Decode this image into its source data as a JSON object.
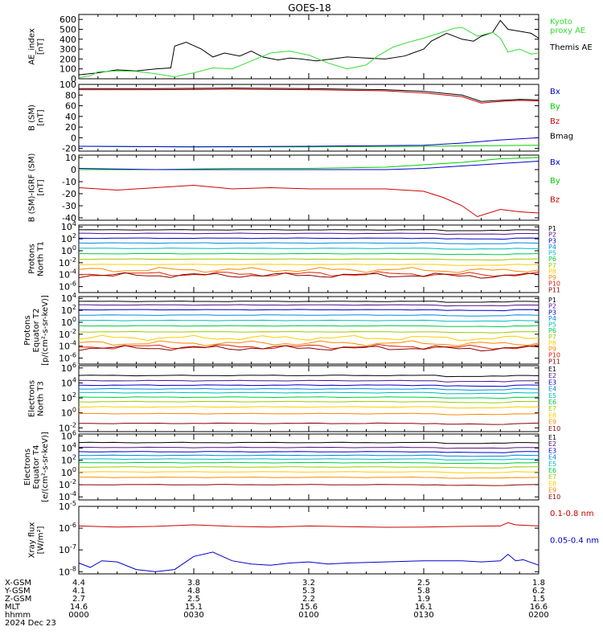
{
  "title": "GOES-18",
  "colors": {
    "axis": "#000000",
    "black": "#000000",
    "blue": "#0000cc",
    "green": "#00cc00",
    "red": "#cc0000",
    "bright_green": "#33dd33"
  },
  "footer": {
    "labels": [
      "X-GSM",
      "Y-GSM",
      "Z-GSM",
      "MLT",
      "hhmm",
      "2024 Dec 23"
    ],
    "columns": [
      {
        "x_gsm": "4.4",
        "y_gsm": "4.1",
        "z_gsm": "2.7",
        "mlt": "14.6",
        "hhmm": "0000"
      },
      {
        "x_gsm": "3.8",
        "y_gsm": "4.8",
        "z_gsm": "2.5",
        "mlt": "15.1",
        "hhmm": "0030"
      },
      {
        "x_gsm": "3.2",
        "y_gsm": "5.3",
        "z_gsm": "2.2",
        "mlt": "15.6",
        "hhmm": "0100"
      },
      {
        "x_gsm": "2.5",
        "y_gsm": "5.8",
        "z_gsm": "1.9",
        "mlt": "16.1",
        "hhmm": "0130"
      },
      {
        "x_gsm": "1.8",
        "y_gsm": "6.2",
        "z_gsm": "1.5",
        "mlt": "16.6",
        "hhmm": "0200"
      }
    ]
  },
  "chart_data": [
    {
      "id": "ae",
      "type": "line",
      "ylabel": [
        "AE_index",
        "[nT]"
      ],
      "ylim": [
        0,
        650
      ],
      "ticks": [
        {
          "v": 0,
          "label": "0"
        },
        {
          "v": 100,
          "label": "100"
        },
        {
          "v": 200,
          "label": "200"
        },
        {
          "v": 300,
          "label": "300"
        },
        {
          "v": 400,
          "label": "400"
        },
        {
          "v": 500,
          "label": "500"
        },
        {
          "v": 600,
          "label": "600"
        }
      ],
      "legend": [
        {
          "lines": [
            "Kyoto",
            "proxy AE"
          ],
          "color": "#33dd33"
        },
        {
          "lines": [
            "Themis AE"
          ],
          "color": "#000000"
        }
      ],
      "series": [
        {
          "color": "#000000",
          "x": [
            0,
            5,
            10,
            15,
            20,
            24,
            25,
            28,
            32,
            35,
            38,
            42,
            45,
            48,
            52,
            55,
            58,
            62,
            66,
            70,
            75,
            80,
            85,
            90,
            92,
            96,
            100,
            103,
            105,
            108,
            110,
            112,
            115,
            118,
            120
          ],
          "y": [
            40,
            60,
            90,
            80,
            100,
            110,
            330,
            370,
            300,
            220,
            260,
            230,
            280,
            220,
            190,
            210,
            200,
            180,
            200,
            220,
            210,
            200,
            230,
            300,
            380,
            460,
            400,
            380,
            430,
            470,
            590,
            500,
            480,
            460,
            410
          ]
        },
        {
          "color": "#33dd33",
          "x": [
            0,
            3,
            5,
            10,
            15,
            20,
            25,
            30,
            35,
            40,
            45,
            50,
            55,
            60,
            65,
            70,
            75,
            78,
            82,
            86,
            90,
            94,
            98,
            100,
            104,
            108,
            110,
            112,
            115,
            118,
            120
          ],
          "y": [
            10,
            30,
            70,
            80,
            75,
            50,
            20,
            60,
            110,
            100,
            180,
            260,
            280,
            240,
            160,
            100,
            140,
            230,
            320,
            370,
            410,
            460,
            510,
            520,
            430,
            470,
            410,
            270,
            300,
            250,
            260
          ]
        }
      ]
    },
    {
      "id": "bsm",
      "type": "line",
      "ylabel": [
        "B (SM)",
        "[nT]"
      ],
      "ylim": [
        -25,
        100
      ],
      "ticks": [
        {
          "v": -20,
          "label": "-20"
        },
        {
          "v": 0,
          "label": "0"
        },
        {
          "v": 20,
          "label": "20"
        },
        {
          "v": 40,
          "label": "40"
        },
        {
          "v": 60,
          "label": "60"
        },
        {
          "v": 80,
          "label": "80"
        },
        {
          "v": 100,
          "label": "100"
        }
      ],
      "legend": [
        {
          "lines": [
            "Bx"
          ],
          "color": "#0000cc"
        },
        {
          "lines": [
            "By"
          ],
          "color": "#00cc00"
        },
        {
          "lines": [
            "Bz"
          ],
          "color": "#cc0000"
        },
        {
          "lines": [
            "Bmag"
          ],
          "color": "#000000"
        }
      ],
      "series": [
        {
          "color": "#000000",
          "x": [
            0,
            20,
            40,
            60,
            80,
            90,
            100,
            105,
            110,
            115,
            120
          ],
          "y": [
            92,
            92,
            93,
            92,
            90,
            87,
            80,
            68,
            70,
            72,
            71
          ]
        },
        {
          "color": "#cc0000",
          "x": [
            0,
            20,
            40,
            60,
            80,
            90,
            100,
            105,
            110,
            115,
            120
          ],
          "y": [
            90,
            90,
            91,
            90,
            88,
            84,
            77,
            65,
            68,
            70,
            69
          ]
        },
        {
          "color": "#00cc00",
          "x": [
            0,
            30,
            60,
            90,
            120
          ],
          "y": [
            -16,
            -17,
            -17,
            -16,
            -14
          ]
        },
        {
          "color": "#0000cc",
          "x": [
            0,
            30,
            60,
            90,
            100,
            110,
            120
          ],
          "y": [
            -16,
            -17,
            -16,
            -14,
            -10,
            -4,
            0
          ]
        }
      ]
    },
    {
      "id": "bigrf",
      "type": "line",
      "ylabel": [
        "B (SM)-IGRF (SM)",
        "[nT]"
      ],
      "ylim": [
        -42,
        12
      ],
      "ticks": [
        {
          "v": -40,
          "label": "-40"
        },
        {
          "v": -30,
          "label": "-30"
        },
        {
          "v": -20,
          "label": "-20"
        },
        {
          "v": -10,
          "label": "-10"
        },
        {
          "v": 0,
          "label": "0"
        },
        {
          "v": 10,
          "label": "10"
        }
      ],
      "legend": [
        {
          "lines": [
            "Bx"
          ],
          "color": "#0000cc"
        },
        {
          "lines": [
            "By"
          ],
          "color": "#00cc00"
        },
        {
          "lines": [
            "Bz"
          ],
          "color": "#cc0000"
        }
      ],
      "series": [
        {
          "color": "#00cc00",
          "x": [
            0,
            20,
            40,
            60,
            80,
            90,
            100,
            110,
            120
          ],
          "y": [
            0,
            0,
            1,
            1,
            2,
            4,
            6,
            9,
            10
          ]
        },
        {
          "color": "#0000cc",
          "x": [
            0,
            20,
            40,
            60,
            80,
            90,
            100,
            110,
            120
          ],
          "y": [
            1,
            0,
            0,
            0,
            0,
            1,
            3,
            5,
            7
          ]
        },
        {
          "color": "#cc0000",
          "x": [
            0,
            10,
            20,
            30,
            40,
            50,
            60,
            70,
            80,
            90,
            95,
            100,
            104,
            110,
            115,
            120
          ],
          "y": [
            -15,
            -17,
            -15,
            -13,
            -16,
            -15,
            -16,
            -16,
            -16,
            -18,
            -23,
            -30,
            -39,
            -33,
            -35,
            -36
          ]
        }
      ]
    },
    {
      "id": "protons_t1",
      "type": "line",
      "log": true,
      "ylabel": [
        "Protons",
        "North T1"
      ],
      "ylim": [
        -7,
        4.3
      ],
      "ticks": [
        {
          "v": 4,
          "label": "10^4"
        },
        {
          "v": 2,
          "label": "10^2"
        },
        {
          "v": 0,
          "label": "10^0"
        },
        {
          "v": -2,
          "label": "10^-2"
        },
        {
          "v": -4,
          "label": "10^-4"
        },
        {
          "v": -6,
          "label": "10^-6"
        }
      ],
      "levels": [
        {
          "name": "P1",
          "color": "#000000",
          "log10_flux": 3.5
        },
        {
          "name": "P2",
          "color": "#551188",
          "log10_flux": 2.9
        },
        {
          "name": "P3",
          "color": "#0000cc",
          "log10_flux": 2.1
        },
        {
          "name": "P4",
          "color": "#0088dd",
          "log10_flux": 1.3
        },
        {
          "name": "P5",
          "color": "#00bbbb",
          "log10_flux": 0.4
        },
        {
          "name": "P6",
          "color": "#00cc44",
          "log10_flux": -0.5
        },
        {
          "name": "P7",
          "color": "#99cc00",
          "log10_flux": -1.4
        },
        {
          "name": "P8",
          "color": "#ffcc00",
          "log10_flux": -2.3
        },
        {
          "name": "P9",
          "color": "#ff8800",
          "log10_flux": -3.2
        },
        {
          "name": "P10",
          "color": "#dd2200",
          "log10_flux": -3.9
        },
        {
          "name": "P11",
          "color": "#880000",
          "log10_flux": -4.1
        }
      ]
    },
    {
      "id": "protons_t2",
      "type": "line",
      "log": true,
      "ylabel": [
        "Protons",
        "Equator T2",
        "[p/(cm²-s-sr-keV)]"
      ],
      "ylim": [
        -7,
        4.3
      ],
      "ticks": [
        {
          "v": 4,
          "label": "10^4"
        },
        {
          "v": 2,
          "label": "10^2"
        },
        {
          "v": 0,
          "label": "10^0"
        },
        {
          "v": -2,
          "label": "10^-2"
        },
        {
          "v": -4,
          "label": "10^-4"
        },
        {
          "v": -6,
          "label": "10^-6"
        }
      ],
      "levels": [
        {
          "name": "P1",
          "color": "#000000",
          "log10_flux": 3.5
        },
        {
          "name": "P2",
          "color": "#551188",
          "log10_flux": 2.9
        },
        {
          "name": "P3",
          "color": "#0000cc",
          "log10_flux": 2.1
        },
        {
          "name": "P4",
          "color": "#0088dd",
          "log10_flux": 1.2
        },
        {
          "name": "P5",
          "color": "#00bbbb",
          "log10_flux": 0.3
        },
        {
          "name": "P6",
          "color": "#00cc44",
          "log10_flux": -0.6
        },
        {
          "name": "P7",
          "color": "#99cc00",
          "log10_flux": -1.6
        },
        {
          "name": "P8",
          "color": "#ffcc00",
          "log10_flux": -2.6
        },
        {
          "name": "P9",
          "color": "#ff8800",
          "log10_flux": -3.5
        },
        {
          "name": "P10",
          "color": "#dd2200",
          "log10_flux": -4.1
        },
        {
          "name": "P11",
          "color": "#880000",
          "log10_flux": -4.3
        }
      ]
    },
    {
      "id": "electrons_t3",
      "type": "line",
      "log": true,
      "ylabel": [
        "Electrons",
        "North T3"
      ],
      "ylim": [
        -2.5,
        6.3
      ],
      "ticks": [
        {
          "v": 6,
          "label": "10^6"
        },
        {
          "v": 4,
          "label": "10^4"
        },
        {
          "v": 2,
          "label": "10^2"
        },
        {
          "v": 0,
          "label": "10^0"
        },
        {
          "v": -2,
          "label": "10^-2"
        }
      ],
      "levels": [
        {
          "name": "E1",
          "color": "#000000",
          "log10_flux": 5.0
        },
        {
          "name": "E2",
          "color": "#551188",
          "log10_flux": 4.3
        },
        {
          "name": "E3",
          "color": "#0000cc",
          "log10_flux": 3.7
        },
        {
          "name": "E4",
          "color": "#0088dd",
          "log10_flux": 3.2
        },
        {
          "name": "E5",
          "color": "#00bbbb",
          "log10_flux": 2.7
        },
        {
          "name": "E6",
          "color": "#00cc44",
          "log10_flux": 2.1
        },
        {
          "name": "E7",
          "color": "#99cc00",
          "log10_flux": 1.5
        },
        {
          "name": "E8",
          "color": "#ffcc00",
          "log10_flux": 0.8
        },
        {
          "name": "E9",
          "color": "#ff8800",
          "log10_flux": -0.1
        },
        {
          "name": "E10",
          "color": "#880000",
          "log10_flux": -1.4
        }
      ]
    },
    {
      "id": "electrons_t4",
      "type": "line",
      "log": true,
      "ylabel": [
        "Electrons",
        "Equator T4",
        "[e/(cm²-s-sr-keV)]"
      ],
      "ylim": [
        -4.5,
        6.3
      ],
      "ticks": [
        {
          "v": 6,
          "label": "10^6"
        },
        {
          "v": 4,
          "label": "10^4"
        },
        {
          "v": 2,
          "label": "10^2"
        },
        {
          "v": 0,
          "label": "10^0"
        },
        {
          "v": -2,
          "label": "10^-2"
        },
        {
          "v": -4,
          "label": "10^-4"
        }
      ],
      "levels": [
        {
          "name": "E1",
          "color": "#000000",
          "log10_flux": 4.9
        },
        {
          "name": "E2",
          "color": "#551188",
          "log10_flux": 4.1
        },
        {
          "name": "E3",
          "color": "#0000cc",
          "log10_flux": 3.4
        },
        {
          "name": "E4",
          "color": "#0088dd",
          "log10_flux": 2.8
        },
        {
          "name": "E5",
          "color": "#00bbbb",
          "log10_flux": 2.2
        },
        {
          "name": "E6",
          "color": "#00cc44",
          "log10_flux": 1.6
        },
        {
          "name": "E7",
          "color": "#99cc00",
          "log10_flux": 0.9
        },
        {
          "name": "E8",
          "color": "#ffcc00",
          "log10_flux": 0.1
        },
        {
          "name": "E9",
          "color": "#ff8800",
          "log10_flux": -0.8
        },
        {
          "name": "E10",
          "color": "#880000",
          "log10_flux": -2.0
        }
      ]
    },
    {
      "id": "xray",
      "type": "line",
      "log": true,
      "ylabel": [
        "Xray flux",
        "[W/m²]"
      ],
      "ylim": [
        -8.1,
        -5
      ],
      "ticks": [
        {
          "v": -5,
          "label": "10^-5"
        },
        {
          "v": -6,
          "label": "10^-6"
        },
        {
          "v": -7,
          "label": "10^-7"
        },
        {
          "v": -8,
          "label": "10^-8"
        }
      ],
      "legend": [
        {
          "lines": [
            "0.1-0.8 nm"
          ],
          "color": "#cc0000"
        },
        {
          "lines": [
            "0.05-0.4 nm"
          ],
          "color": "#0000cc"
        }
      ],
      "series": [
        {
          "color": "#cc0000",
          "x": [
            0,
            10,
            20,
            30,
            40,
            50,
            60,
            70,
            80,
            90,
            100,
            110,
            112,
            114,
            120
          ],
          "y": [
            -5.9,
            -5.95,
            -5.92,
            -5.85,
            -5.92,
            -5.95,
            -5.9,
            -5.93,
            -5.96,
            -5.95,
            -5.92,
            -5.9,
            -5.75,
            -5.85,
            -5.9
          ]
        },
        {
          "color": "#0000cc",
          "x": [
            0,
            3,
            6,
            10,
            15,
            20,
            25,
            30,
            35,
            40,
            45,
            50,
            55,
            60,
            65,
            70,
            80,
            90,
            100,
            105,
            110,
            112,
            114,
            116,
            120
          ],
          "y": [
            -7.6,
            -7.8,
            -7.5,
            -7.55,
            -7.9,
            -8.0,
            -7.9,
            -7.3,
            -7.1,
            -7.5,
            -7.65,
            -7.7,
            -7.6,
            -7.55,
            -7.65,
            -7.6,
            -7.55,
            -7.5,
            -7.5,
            -7.55,
            -7.5,
            -7.2,
            -7.5,
            -7.45,
            -7.7
          ]
        }
      ]
    }
  ]
}
